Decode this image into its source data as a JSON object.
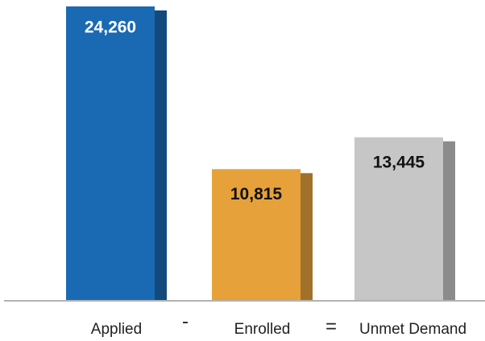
{
  "chart_data": {
    "type": "bar",
    "categories": [
      "Applied",
      "Enrolled",
      "Unmet Demand"
    ],
    "values": [
      24260,
      10815,
      13445
    ],
    "value_labels": [
      "24,260",
      "10,815",
      "13,445"
    ],
    "colors": [
      "#1a6ab3",
      "#e6a13a",
      "#c6c6c6"
    ],
    "annotations": [
      "-",
      "="
    ]
  }
}
